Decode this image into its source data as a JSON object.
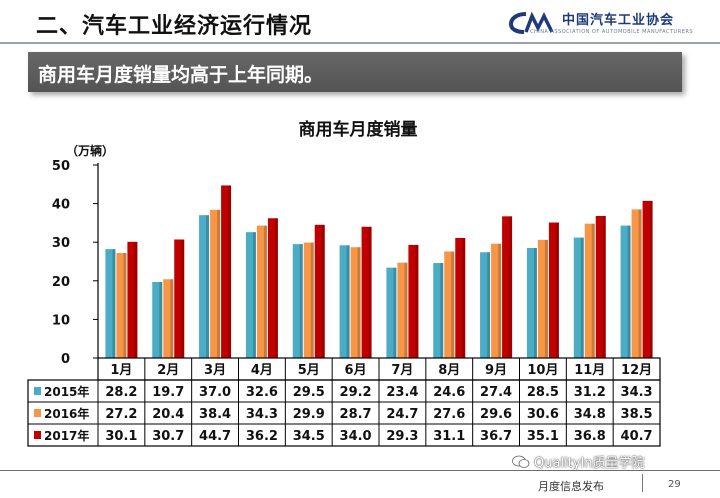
{
  "header": {
    "title": "二、汽车工业经济运行情况",
    "logo_text": "中国汽车工业协会",
    "logo_subtext": "CHINA ASSOCIATION OF AUTOMOBILE MANUFACTURERS"
  },
  "banner": {
    "text": "商用车月度销量均高于上年同期。"
  },
  "chart_data": {
    "type": "bar",
    "title": "商用车月度销量",
    "ylabel": "（万辆）",
    "xlabel": "",
    "ylim": [
      0,
      50
    ],
    "yticks": [
      0,
      10,
      20,
      30,
      40,
      50
    ],
    "grid": false,
    "legend": "table-left",
    "categories": [
      "1月",
      "2月",
      "3月",
      "4月",
      "5月",
      "6月",
      "7月",
      "8月",
      "9月",
      "10月",
      "11月",
      "12月"
    ],
    "series": [
      {
        "name": "2015年",
        "color": "#4BACC6",
        "values": [
          28.2,
          19.7,
          37.0,
          32.6,
          29.5,
          29.2,
          23.4,
          24.6,
          27.4,
          28.5,
          31.2,
          34.3
        ]
      },
      {
        "name": "2016年",
        "color": "#F79646",
        "values": [
          27.2,
          20.4,
          38.4,
          34.3,
          29.9,
          28.7,
          24.7,
          27.6,
          29.6,
          30.6,
          34.8,
          38.5
        ]
      },
      {
        "name": "2017年",
        "color": "#C00000",
        "values": [
          30.1,
          30.7,
          44.7,
          36.2,
          34.5,
          34.0,
          29.3,
          31.1,
          36.7,
          35.1,
          36.8,
          40.7
        ]
      }
    ]
  },
  "footer": {
    "text": "月度信息发布",
    "page": "29",
    "watermark": "QualityIn质量学院"
  }
}
